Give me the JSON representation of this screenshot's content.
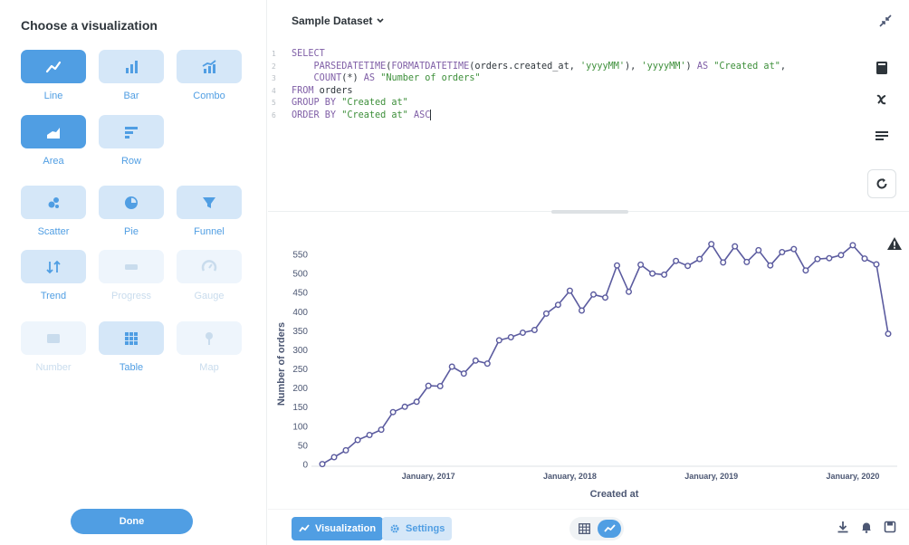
{
  "sidebar": {
    "title": "Choose a visualization",
    "done_label": "Done",
    "items": [
      {
        "label": "Line",
        "icon": "line-chart-icon",
        "state": "selected"
      },
      {
        "label": "Bar",
        "icon": "bar-chart-icon",
        "state": "normal"
      },
      {
        "label": "Combo",
        "icon": "combo-chart-icon",
        "state": "normal"
      },
      {
        "label": "Area",
        "icon": "area-chart-icon",
        "state": "selected"
      },
      {
        "label": "Row",
        "icon": "row-chart-icon",
        "state": "normal"
      },
      {
        "label": "Scatter",
        "icon": "scatter-chart-icon",
        "state": "normal"
      },
      {
        "label": "Pie",
        "icon": "pie-chart-icon",
        "state": "normal"
      },
      {
        "label": "Funnel",
        "icon": "funnel-icon",
        "state": "normal"
      },
      {
        "label": "Trend",
        "icon": "trend-icon",
        "state": "normal"
      },
      {
        "label": "Progress",
        "icon": "progress-icon",
        "state": "disabled"
      },
      {
        "label": "Gauge",
        "icon": "gauge-icon",
        "state": "disabled"
      },
      {
        "label": "Number",
        "icon": "number-icon",
        "state": "disabled"
      },
      {
        "label": "Table",
        "icon": "table-icon",
        "state": "normal"
      },
      {
        "label": "Map",
        "icon": "map-pin-icon",
        "state": "disabled"
      }
    ]
  },
  "editor": {
    "dataset_label": "Sample Dataset",
    "line_numbers": [
      "1",
      "2",
      "3",
      "4",
      "5",
      "6"
    ],
    "code": {
      "l1_select": "SELECT",
      "l2_fn1": "PARSEDATETIME",
      "l2_p1": "(",
      "l2_fn2": "FORMATDATETIME",
      "l2_p2": "(orders.created_at, ",
      "l2_s1": "'yyyyMM'",
      "l2_p3": "), ",
      "l2_s2": "'yyyyMM'",
      "l2_p4": ") ",
      "l2_as": "AS",
      "l2_s3": "\"Created at\"",
      "l2_comma": ",",
      "l3_fn": "COUNT",
      "l3_p": "(*) ",
      "l3_as": "AS",
      "l3_s": "\"Number of orders\"",
      "l4_from": "FROM",
      "l4_t": " orders",
      "l5_kw": "GROUP BY",
      "l5_s": "\"Created at\"",
      "l6_kw": "ORDER BY",
      "l6_s": "\"Created at\"",
      "l6_asc": "ASC"
    }
  },
  "chart_data": {
    "type": "line",
    "title": "",
    "xlabel": "Created at",
    "ylabel": "Number of orders",
    "ylim": [
      0,
      550
    ],
    "yticks": [
      0,
      50,
      100,
      150,
      200,
      250,
      300,
      350,
      400,
      450,
      500,
      550
    ],
    "x_start": "2016-04",
    "x_tick_labels": [
      {
        "label": "January, 2017",
        "month_index": 9
      },
      {
        "label": "January, 2018",
        "month_index": 21
      },
      {
        "label": "January, 2019",
        "month_index": 33
      },
      {
        "label": "January, 2020",
        "month_index": 45
      }
    ],
    "values": [
      1,
      19,
      37,
      64,
      77,
      91,
      137,
      151,
      164,
      206,
      205,
      256,
      238,
      272,
      264,
      325,
      333,
      345,
      352,
      395,
      418,
      455,
      403,
      445,
      437,
      521,
      452,
      523,
      500,
      497,
      533,
      520,
      538,
      577,
      529,
      571,
      530,
      561,
      521,
      556,
      564,
      508,
      538,
      540,
      548,
      574,
      539,
      524,
      342
    ],
    "grid": false,
    "color": "#5b5b9f"
  },
  "footer": {
    "visualization_label": "Visualization",
    "settings_label": "Settings"
  },
  "colors": {
    "brand": "#509ee3",
    "brand_light": "#d5e7f8",
    "series": "#5b5b9f"
  }
}
